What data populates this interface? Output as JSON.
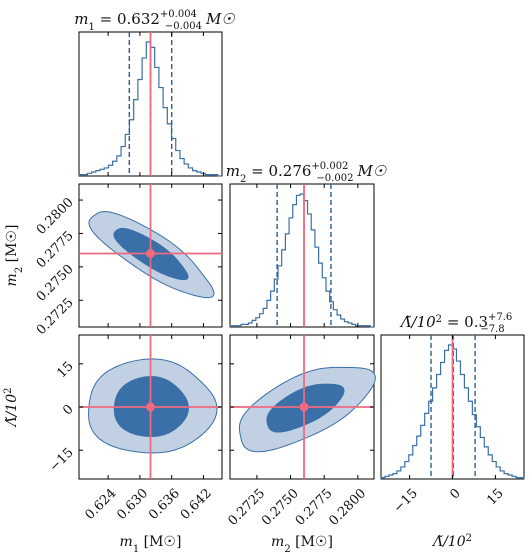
{
  "colors": {
    "hist": "#3a6fa7",
    "quantile": "#2e5f93",
    "truth": "#f06a7f",
    "contour_inner": "#3a6fa7",
    "contour_outer": "#c1d1e3",
    "contour_edge": "#3a6fa7"
  },
  "chart_data": {
    "type": "corner",
    "parameters": [
      "m1",
      "m2",
      "Lambda"
    ],
    "truth": {
      "m1": 0.632,
      "m2": 0.276,
      "Lambda": 0.0
    },
    "titles": {
      "m1": {
        "base": "m",
        "sub": "1",
        "value": " = 0.632",
        "plus": "+0.004",
        "minus": "−0.004",
        "unit": "M☉"
      },
      "m2": {
        "base": "m",
        "sub": "2",
        "value": " = 0.276",
        "plus": "+0.002",
        "minus": "−0.002",
        "unit": "M☉"
      },
      "Lambda": {
        "base": "Λ̃/10",
        "sup": "2",
        "value": " = 0.3",
        "plus": "+7.6",
        "minus": "−7.8",
        "unit": ""
      }
    },
    "axis_labels": {
      "m1": {
        "base": "m",
        "sub": "1",
        "unit": " [M☉]"
      },
      "m2": {
        "base": "m",
        "sub": "2",
        "unit": " [M☉]"
      },
      "Lambda": {
        "base": "Λ̃/10",
        "sup": "2",
        "unit": ""
      }
    },
    "ticks": {
      "m1": {
        "values": [
          0.624,
          0.63,
          0.636,
          0.642
        ],
        "labels": [
          "0.624",
          "0.630",
          "0.636",
          "0.642"
        ],
        "range": [
          0.6185,
          0.6455
        ]
      },
      "m2": {
        "values": [
          0.2725,
          0.275,
          0.2775,
          0.28
        ],
        "labels": [
          "0.2725",
          "0.2750",
          "0.2775",
          "0.2800"
        ],
        "range": [
          0.2705,
          0.2812
        ]
      },
      "Lambda": {
        "values": [
          -15,
          0,
          15
        ],
        "labels": [
          "−15",
          "0",
          "15"
        ],
        "range": [
          -25,
          25
        ]
      }
    },
    "quantiles": {
      "m1": [
        0.628,
        0.632,
        0.636
      ],
      "m2": [
        0.274,
        0.276,
        0.278
      ],
      "Lambda": [
        -7.5,
        0.3,
        7.9
      ]
    },
    "histograms": {
      "m1": {
        "edges_range": [
          0.6185,
          0.6455
        ],
        "counts": [
          1,
          1,
          2,
          3,
          4,
          5,
          6,
          8,
          11,
          15,
          22,
          31,
          42,
          57,
          72,
          88,
          100,
          96,
          81,
          66,
          51,
          39,
          28,
          19,
          13,
          9,
          6,
          4,
          3,
          2,
          1,
          1,
          1,
          0
        ]
      },
      "m2": {
        "edges_range": [
          0.2705,
          0.2812
        ],
        "counts": [
          1,
          1,
          1,
          2,
          2,
          3,
          5,
          7,
          10,
          14,
          20,
          27,
          36,
          46,
          58,
          70,
          82,
          92,
          99,
          100,
          95,
          85,
          73,
          60,
          48,
          37,
          27,
          19,
          13,
          9,
          6,
          4,
          3,
          2,
          1,
          1,
          1,
          1,
          0
        ]
      },
      "Lambda": {
        "edges_range": [
          -25,
          25
        ],
        "counts": [
          1,
          2,
          3,
          4,
          6,
          9,
          13,
          18,
          25,
          32,
          40,
          49,
          58,
          68,
          78,
          87,
          96,
          100,
          97,
          88,
          78,
          68,
          58,
          48,
          39,
          31,
          24,
          18,
          13,
          9,
          6,
          4,
          3,
          2,
          1,
          1
        ]
      }
    }
  }
}
